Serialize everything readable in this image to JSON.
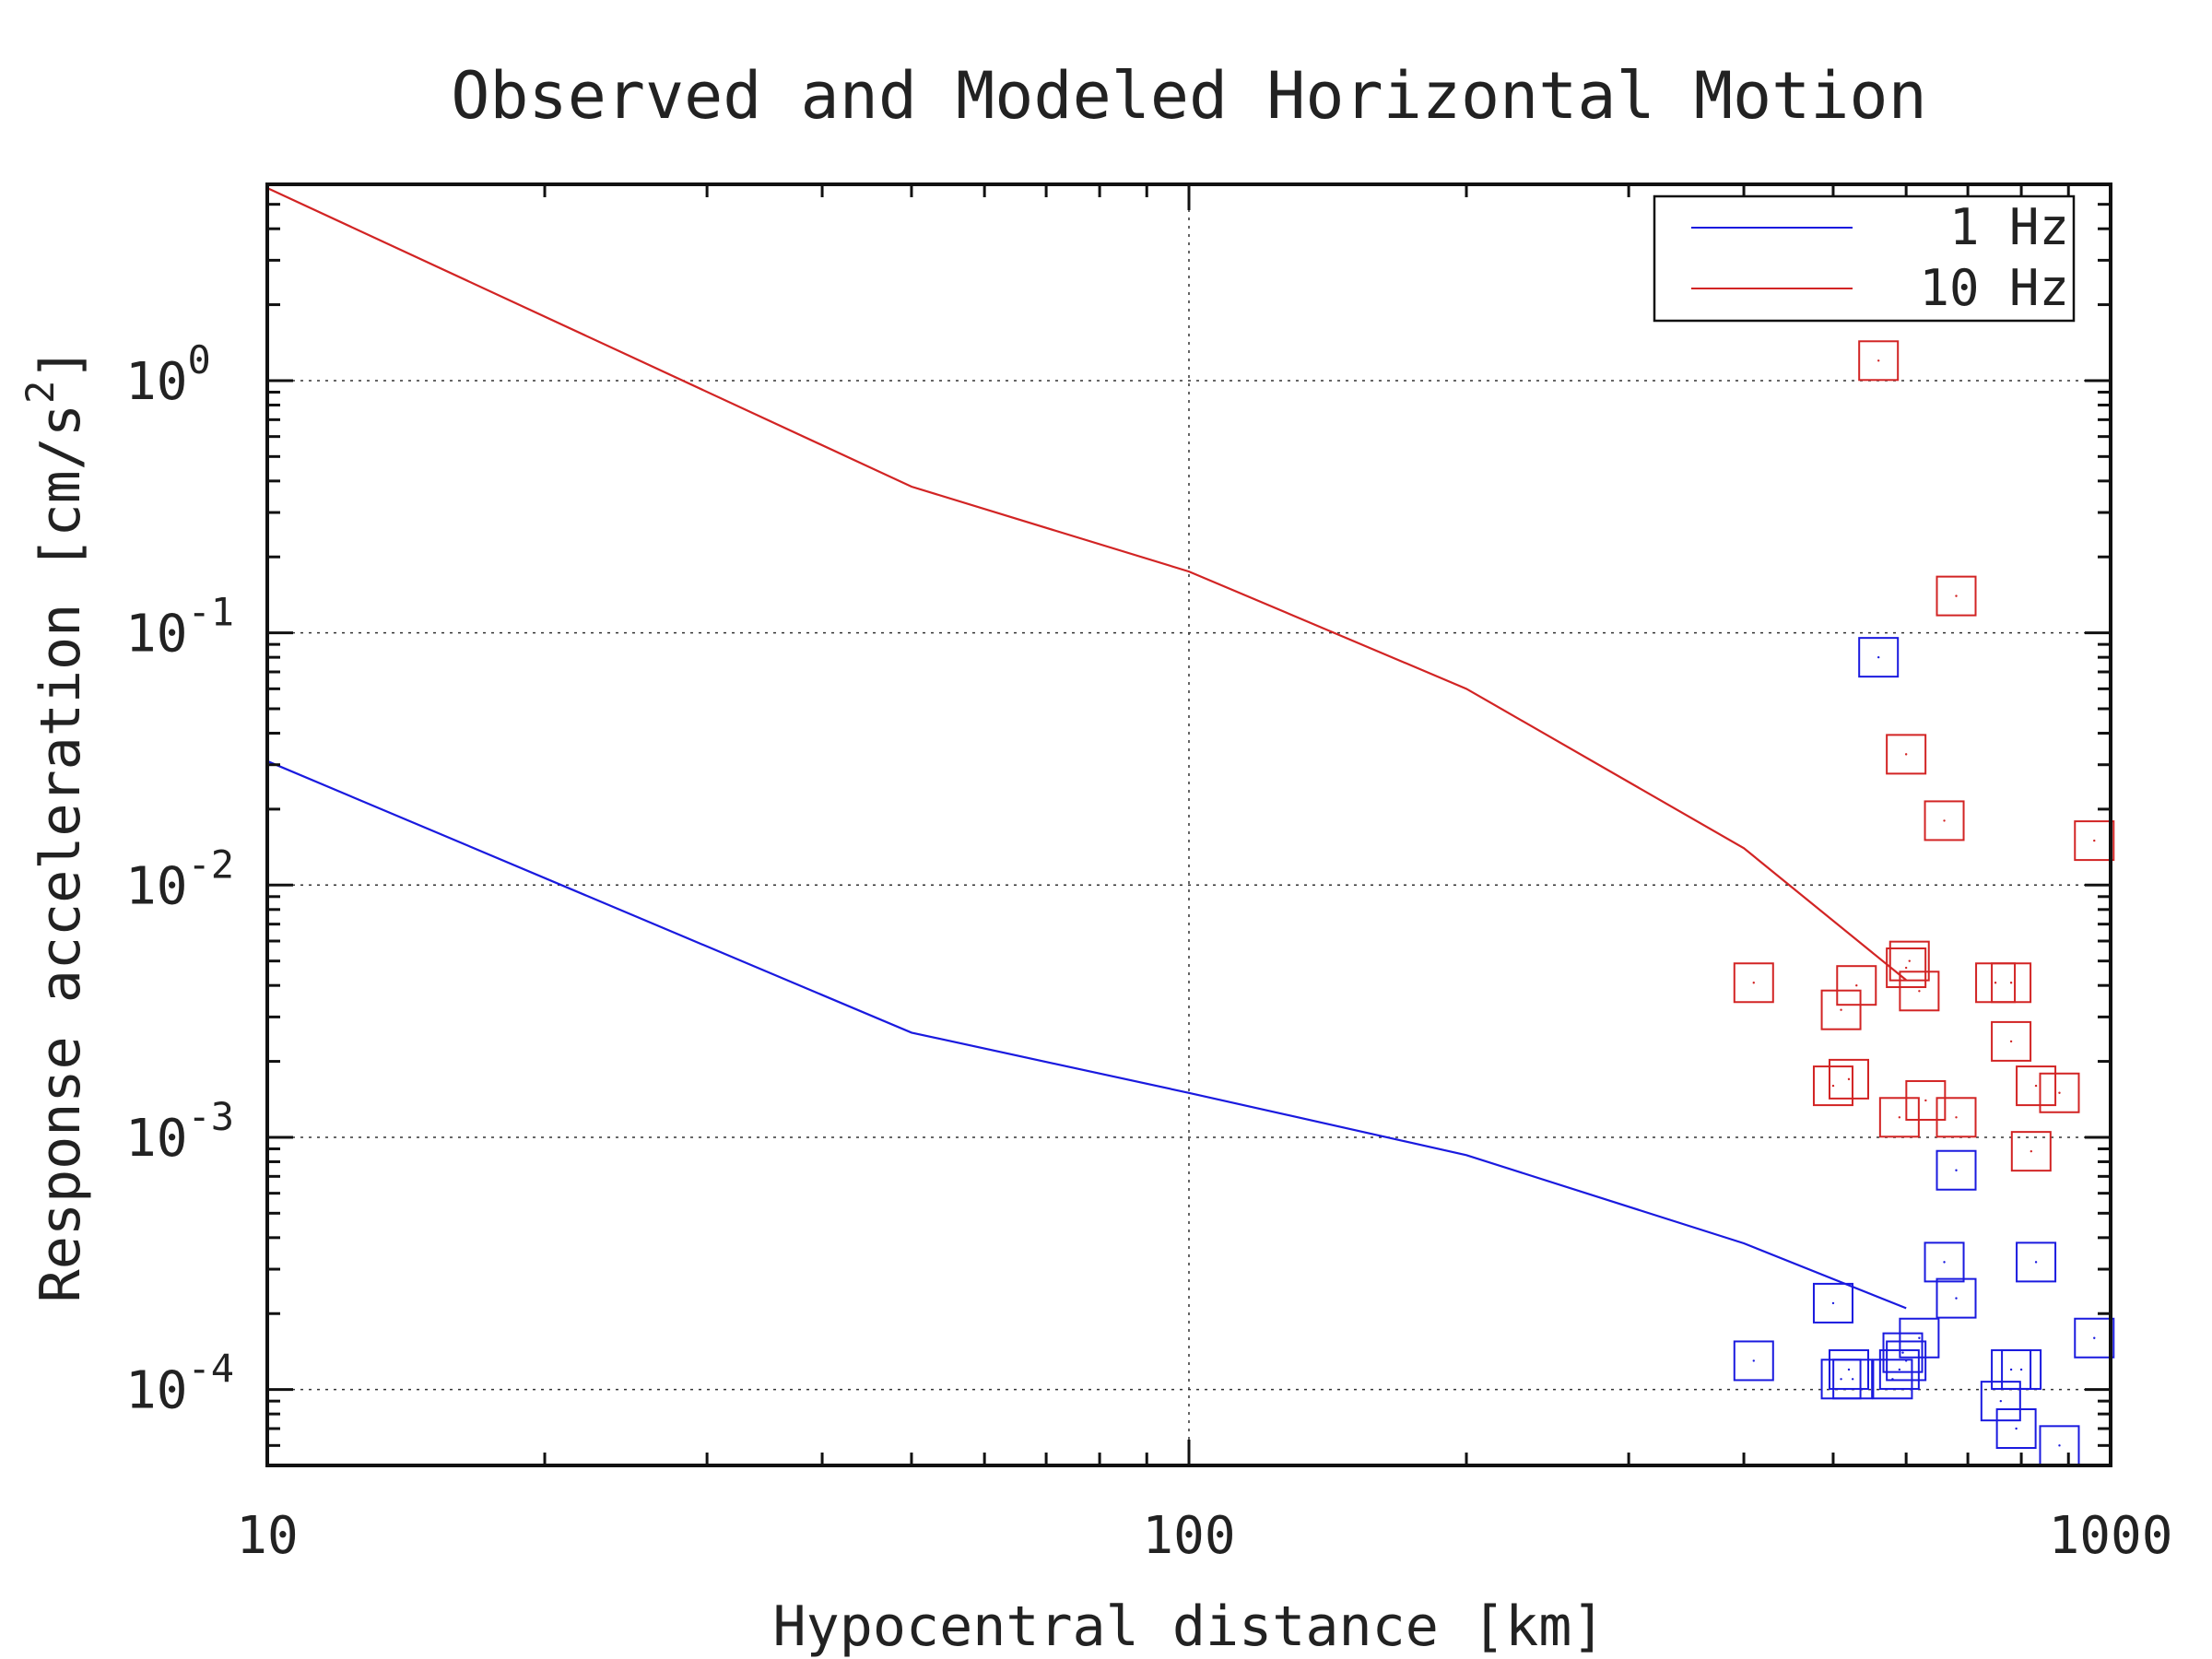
{
  "chart_data": {
    "type": "scatter",
    "title": "Observed and Modeled Horizontal Motion",
    "xlabel": "Hypocentral distance [km]",
    "ylabel_text": "Response acceleration [cm/s",
    "ylabel_superscript": "2",
    "ylabel_close": "]",
    "x_scale": "log",
    "y_scale": "log",
    "xlim": [
      10,
      1000
    ],
    "ylim": [
      5e-05,
      6
    ],
    "x_ticks": [
      {
        "value": 10,
        "label": "10"
      },
      {
        "value": 100,
        "label": "100"
      },
      {
        "value": 1000,
        "label": "1000"
      }
    ],
    "y_ticks": [
      {
        "value": 1,
        "base": "10",
        "exp": "0"
      },
      {
        "value": 0.1,
        "base": "10",
        "exp": "-1"
      },
      {
        "value": 0.01,
        "base": "10",
        "exp": "-2"
      },
      {
        "value": 0.001,
        "base": "10",
        "exp": "-3"
      },
      {
        "value": 0.0001,
        "base": "10",
        "exp": "-4"
      }
    ],
    "grid": true,
    "legend_position": "top-right",
    "series": [
      {
        "name": "1 Hz",
        "color": "#1a1adf",
        "line": [
          [
            10,
            0.031
          ],
          [
            50,
            0.0026
          ],
          [
            100,
            0.0015
          ],
          [
            200,
            0.00085
          ],
          [
            400,
            0.00038
          ],
          [
            600,
            0.00021
          ]
        ],
        "points": [
          [
            410,
            0.00013
          ],
          [
            500,
            0.00022
          ],
          [
            510,
            0.00011
          ],
          [
            520,
            0.00012
          ],
          [
            525,
            0.00011
          ],
          [
            560,
            0.08
          ],
          [
            580,
            0.00011
          ],
          [
            590,
            0.00012
          ],
          [
            595,
            0.00014
          ],
          [
            600,
            0.00013
          ],
          [
            620,
            0.00016
          ],
          [
            660,
            0.00032
          ],
          [
            680,
            0.00074
          ],
          [
            680,
            0.00023
          ],
          [
            760,
            9e-05
          ],
          [
            780,
            0.00012
          ],
          [
            790,
            7e-05
          ],
          [
            800,
            0.00012
          ],
          [
            830,
            0.00032
          ],
          [
            880,
            6e-05
          ],
          [
            960,
            0.00016
          ]
        ]
      },
      {
        "name": "10 Hz",
        "color": "#d22424",
        "line": [
          [
            10,
            5.8
          ],
          [
            50,
            0.38
          ],
          [
            100,
            0.175
          ],
          [
            200,
            0.06
          ],
          [
            400,
            0.014
          ],
          [
            600,
            0.0042
          ]
        ],
        "points": [
          [
            410,
            0.0041
          ],
          [
            500,
            0.0016
          ],
          [
            510,
            0.0032
          ],
          [
            520,
            0.0017
          ],
          [
            530,
            0.004
          ],
          [
            560,
            1.2
          ],
          [
            590,
            0.0012
          ],
          [
            600,
            0.0047
          ],
          [
            605,
            0.005
          ],
          [
            600,
            0.033
          ],
          [
            620,
            0.0038
          ],
          [
            630,
            0.0014
          ],
          [
            660,
            0.018
          ],
          [
            680,
            0.0012
          ],
          [
            680,
            0.14
          ],
          [
            750,
            0.0041
          ],
          [
            780,
            0.0041
          ],
          [
            780,
            0.0024
          ],
          [
            820,
            0.00088
          ],
          [
            830,
            0.0016
          ],
          [
            880,
            0.0015
          ],
          [
            960,
            0.015
          ]
        ]
      }
    ]
  }
}
